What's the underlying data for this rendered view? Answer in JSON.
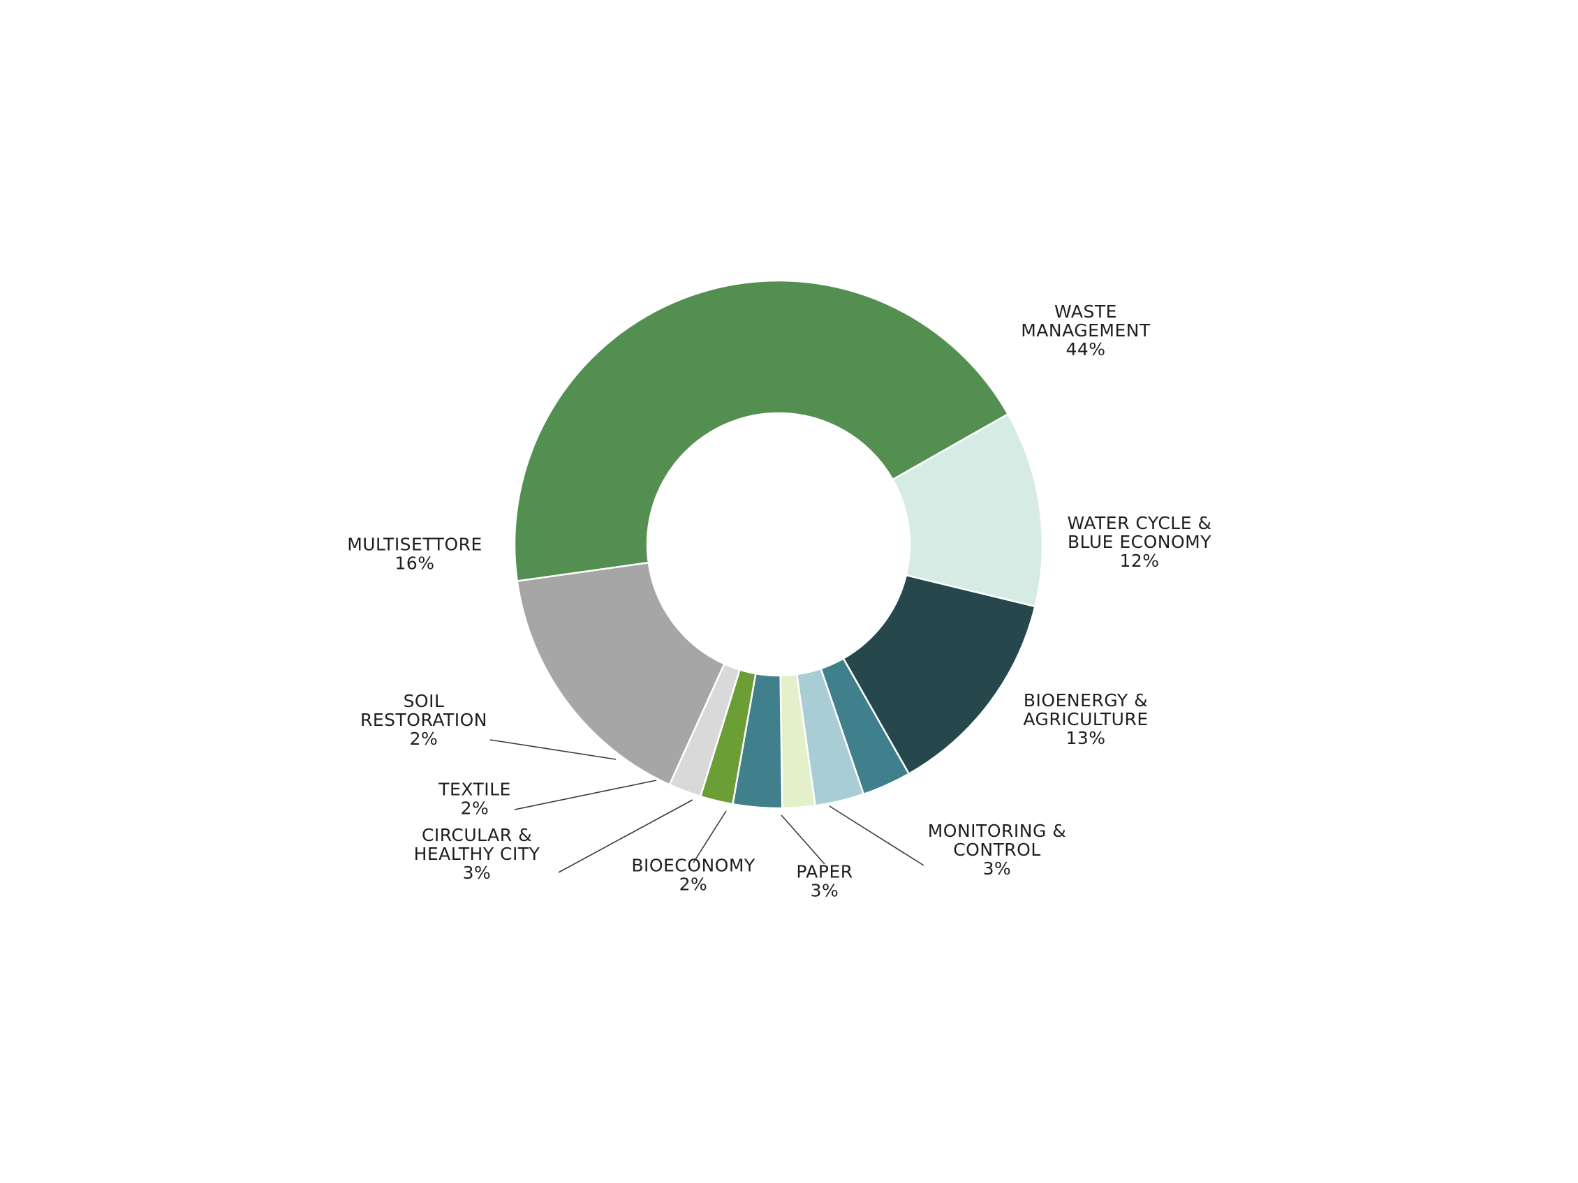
{
  "chart_data": {
    "type": "pie",
    "variant": "donut",
    "title": "",
    "legend": "none",
    "slices": [
      {
        "name": "WASTE MANAGEMENT",
        "value": 44,
        "value_label": "44%",
        "label_lines": [
          "WASTE",
          "MANAGEMENT"
        ],
        "color": "#538f51"
      },
      {
        "name": "WATER CYCLE & BLUE ECONOMY",
        "value": 12,
        "value_label": "12%",
        "label_lines": [
          "WATER CYCLE &",
          "BLUE ECONOMY"
        ],
        "color": "#d6ebe4"
      },
      {
        "name": "BIOENERGY & AGRICULTURE",
        "value": 13,
        "value_label": "13%",
        "label_lines": [
          "BIOENERGY &",
          "AGRICULTURE"
        ],
        "color": "#26484d"
      },
      {
        "name": "MONITORING & CONTROL",
        "value": 3,
        "value_label": "3%",
        "label_lines": [
          "MONITORING &",
          "CONTROL"
        ],
        "color": "#3f808c"
      },
      {
        "name": "PAPER",
        "value": 3,
        "value_label": "3%",
        "label_lines": [
          "PAPER"
        ],
        "color": "#a8cdd4"
      },
      {
        "name": "BIOECONOMY",
        "value": 2,
        "value_label": "2%",
        "label_lines": [
          "BIOECONOMY"
        ],
        "color": "#e4f0c9"
      },
      {
        "name": "CIRCULAR & HEALTHY CITY",
        "value": 3,
        "value_label": "3%",
        "label_lines": [
          "CIRCULAR &",
          "HEALTHY CITY"
        ],
        "color": "#3f808c"
      },
      {
        "name": "TEXTILE",
        "value": 2,
        "value_label": "2%",
        "label_lines": [
          "TEXTILE"
        ],
        "color": "#6b9e34"
      },
      {
        "name": "SOIL RESTORATION",
        "value": 2,
        "value_label": "2%",
        "label_lines": [
          "SOIL",
          "RESTORATION"
        ],
        "color": "#d9d9d9"
      },
      {
        "name": "MULTISETTORE",
        "value": 16,
        "value_label": "16%",
        "label_lines": [
          "MULTISETTORE"
        ],
        "color": "#a6a6a6"
      }
    ]
  }
}
